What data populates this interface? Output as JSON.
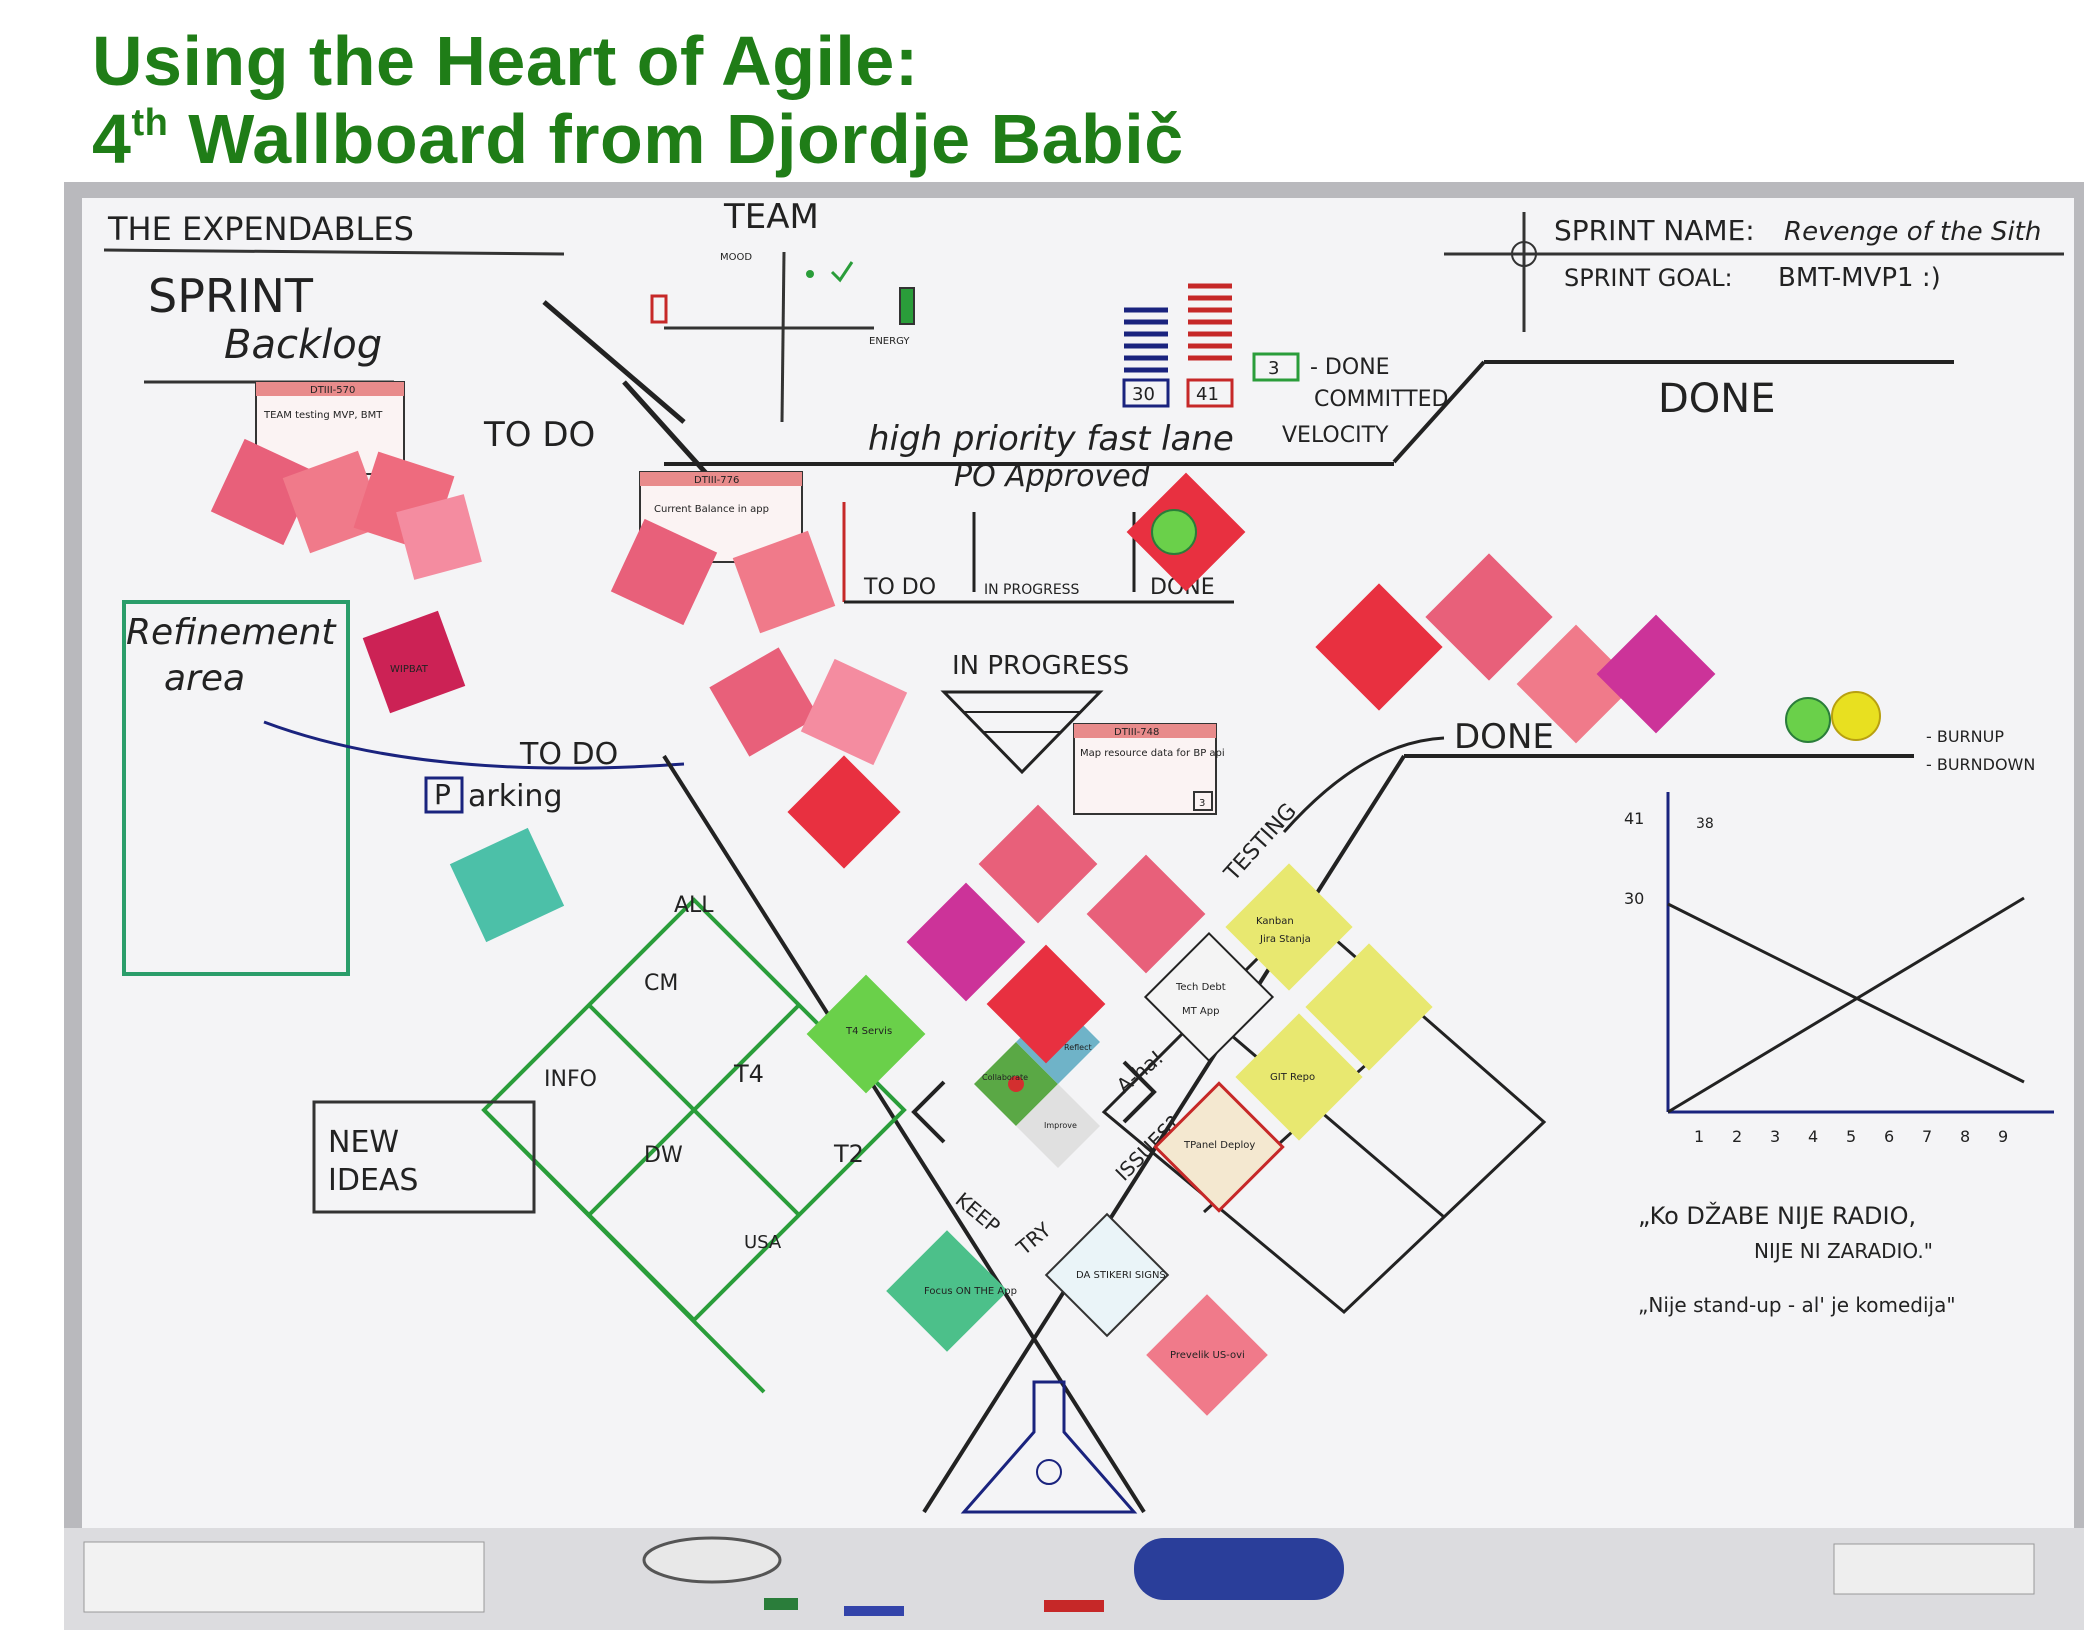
{
  "title": {
    "line1": "Using the Heart of Agile:",
    "line2_prefix": "4",
    "line2_sup": "th",
    "line2_rest": " Wallboard from Djordje Babič"
  },
  "board": {
    "team_name": "THE EXPENDABLES",
    "sprint_backlog": [
      "SPRINT",
      "Backlog"
    ],
    "team_label": "TEAM",
    "mood_label": "MOOD",
    "energy_label": "ENERGY",
    "sprint_name_label": "SPRINT NAME:",
    "sprint_name_value": "Revenge of the Sith",
    "sprint_goal_label": "SPRINT GOAL:",
    "sprint_goal_value": "BMT-MVP1 :)",
    "velocity": {
      "done": "3",
      "committed": "41",
      "velocity": "30",
      "done_label": "- DONE",
      "committed_label": "COMMITTED",
      "velocity_label": "VELOCITY"
    },
    "to_do_top": "TO DO",
    "done_top": "DONE",
    "fast_lane": {
      "title": "high priority fast lane",
      "subtitle": "PO Approved",
      "cols": [
        "TO DO",
        "IN PROGRESS",
        "DONE"
      ]
    },
    "refinement": [
      "Refinement",
      "area"
    ],
    "to_do_mid": "TO DO",
    "parking_box": "P",
    "parking_rest": "arking",
    "in_progress": "IN PROGRESS",
    "testing": "TESTING",
    "done_mid": "DONE",
    "burnup": "- BURNUP",
    "burndown": "- BURNDOWN",
    "burn_y": [
      "41",
      "30"
    ],
    "burn_target": "38",
    "burn_x": [
      "1",
      "2",
      "3",
      "4",
      "5",
      "6",
      "7",
      "8",
      "9"
    ],
    "new_ideas": [
      "NEW",
      "IDEAS"
    ],
    "grid_labels": [
      "ALL",
      "CM",
      "INFO",
      "T4",
      "DW",
      "T2",
      "USA"
    ],
    "retro_words": [
      "A-ha!",
      "ISSUES?",
      "KEEP",
      "TRY"
    ],
    "heart": [
      "Collaborate",
      "Reflect",
      "Improve"
    ],
    "quote1a": "„Ko DŽABE NIJE RADIO,",
    "quote1b": "NIJE NI ZARADIO.\"",
    "quote2": "„Nije stand-up - al' je komedija\"",
    "notes": {
      "n1": "DTIII-570",
      "n1b": "TEAM testing MVP, BMT",
      "n2": "DTIII-776",
      "n2b": "Current Balance in app",
      "n3": "DTIII-748",
      "n3b": "Map resource data for BP api",
      "n3c": "3",
      "wip": "WIPBAT",
      "kanban": "Kanban",
      "kanban2": "Jira Stanja",
      "techdebt": "Tech Debt",
      "techdebt2": "MT App",
      "git": "GIT Repo",
      "tpanel": "TPanel Deploy",
      "focus": "Focus ON THE App",
      "stikeri": "DA STIKERI SIGNS",
      "t4servis": "T4 Servis",
      "prevelik": "Prevelik US-ovi"
    }
  }
}
